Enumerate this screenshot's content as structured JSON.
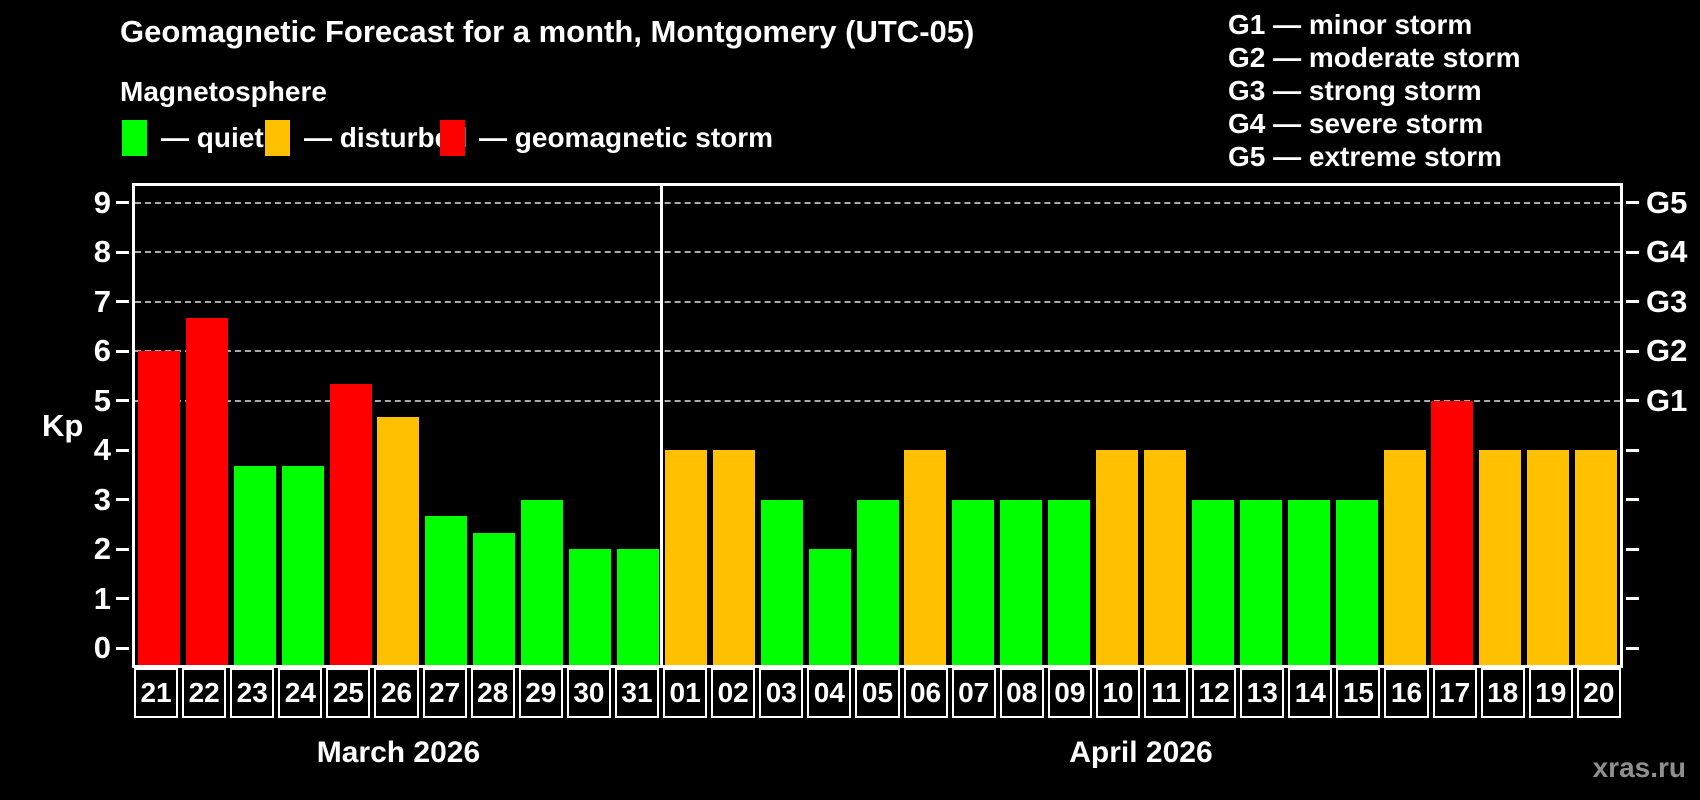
{
  "title": "Geomagnetic Forecast for a month, Montgomery (UTC-05)",
  "subtitle": "Magnetosphere",
  "watermark": "xras.ru",
  "legend": [
    {
      "key": "quiet",
      "label": "— quiet",
      "color": "#00ff00"
    },
    {
      "key": "disturbed",
      "label": "— disturbed",
      "color": "#ffc000"
    },
    {
      "key": "storm",
      "label": "— geomagnetic storm",
      "color": "#ff0000"
    }
  ],
  "g_scale_legend": [
    "G1 — minor storm",
    "G2 — moderate storm",
    "G3 — strong storm",
    "G4 — severe storm",
    "G5 — extreme storm"
  ],
  "chart_data": {
    "type": "bar",
    "title": "Geomagnetic Forecast for a month, Montgomery (UTC-05)",
    "ylabel": "Kp",
    "ylim": [
      0,
      9.4
    ],
    "yticks": [
      0,
      1,
      2,
      3,
      4,
      5,
      6,
      7,
      8,
      9
    ],
    "gridline_levels": [
      5,
      6,
      7,
      8,
      9
    ],
    "grid": "dashed horizontal lines at G-storm levels only",
    "legend_position": "top-left",
    "right_axis": {
      "levels": [
        5,
        6,
        7,
        8,
        9
      ],
      "labels": [
        "G1",
        "G2",
        "G3",
        "G4",
        "G5"
      ]
    },
    "status_colors": {
      "quiet": "#00ff00",
      "disturbed": "#ffc000",
      "storm": "#ff0000"
    },
    "months": [
      {
        "label": "March 2026",
        "days": [
          {
            "date": "21",
            "kp": 6.0,
            "status": "storm"
          },
          {
            "date": "22",
            "kp": 6.67,
            "status": "storm"
          },
          {
            "date": "23",
            "kp": 3.67,
            "status": "quiet"
          },
          {
            "date": "24",
            "kp": 3.67,
            "status": "quiet"
          },
          {
            "date": "25",
            "kp": 5.33,
            "status": "storm"
          },
          {
            "date": "26",
            "kp": 4.67,
            "status": "disturbed"
          },
          {
            "date": "27",
            "kp": 2.67,
            "status": "quiet"
          },
          {
            "date": "28",
            "kp": 2.33,
            "status": "quiet"
          },
          {
            "date": "29",
            "kp": 3.0,
            "status": "quiet"
          },
          {
            "date": "30",
            "kp": 2.0,
            "status": "quiet"
          },
          {
            "date": "31",
            "kp": 2.0,
            "status": "quiet"
          }
        ]
      },
      {
        "label": "April 2026",
        "days": [
          {
            "date": "01",
            "kp": 4.0,
            "status": "disturbed"
          },
          {
            "date": "02",
            "kp": 4.0,
            "status": "disturbed"
          },
          {
            "date": "03",
            "kp": 3.0,
            "status": "quiet"
          },
          {
            "date": "04",
            "kp": 2.0,
            "status": "quiet"
          },
          {
            "date": "05",
            "kp": 3.0,
            "status": "quiet"
          },
          {
            "date": "06",
            "kp": 4.0,
            "status": "disturbed"
          },
          {
            "date": "07",
            "kp": 3.0,
            "status": "quiet"
          },
          {
            "date": "08",
            "kp": 3.0,
            "status": "quiet"
          },
          {
            "date": "09",
            "kp": 3.0,
            "status": "quiet"
          },
          {
            "date": "10",
            "kp": 4.0,
            "status": "disturbed"
          },
          {
            "date": "11",
            "kp": 4.0,
            "status": "disturbed"
          },
          {
            "date": "12",
            "kp": 3.0,
            "status": "quiet"
          },
          {
            "date": "13",
            "kp": 3.0,
            "status": "quiet"
          },
          {
            "date": "14",
            "kp": 3.0,
            "status": "quiet"
          },
          {
            "date": "15",
            "kp": 3.0,
            "status": "quiet"
          },
          {
            "date": "16",
            "kp": 4.0,
            "status": "disturbed"
          },
          {
            "date": "17",
            "kp": 5.0,
            "status": "storm"
          },
          {
            "date": "18",
            "kp": 4.0,
            "status": "disturbed"
          },
          {
            "date": "19",
            "kp": 4.0,
            "status": "disturbed"
          },
          {
            "date": "20",
            "kp": 4.0,
            "status": "disturbed"
          }
        ]
      }
    ]
  }
}
